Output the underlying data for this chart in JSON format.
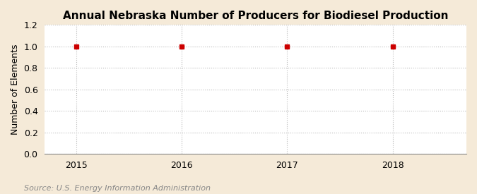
{
  "title": "Annual Nebraska Number of Producers for Biodiesel Production",
  "ylabel": "Number of Elements",
  "source": "Source: U.S. Energy Information Administration",
  "x": [
    2015,
    2016,
    2017,
    2018
  ],
  "y": [
    1,
    1,
    1,
    1
  ],
  "xlim": [
    2014.7,
    2018.7
  ],
  "ylim": [
    0.0,
    1.2
  ],
  "yticks": [
    0.0,
    0.2,
    0.4,
    0.6,
    0.8,
    1.0,
    1.2
  ],
  "xticks": [
    2015,
    2016,
    2017,
    2018
  ],
  "background_color": "#f5ead8",
  "plot_bg_color": "#ffffff",
  "marker_color": "#cc0000",
  "marker": "s",
  "marker_size": 4,
  "grid_color": "#bbbbbb",
  "grid_style": ":",
  "title_fontsize": 11,
  "axis_label_fontsize": 9,
  "tick_fontsize": 9,
  "source_fontsize": 8
}
